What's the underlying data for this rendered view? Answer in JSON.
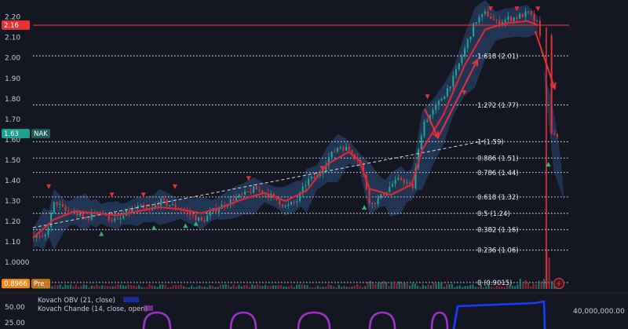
{
  "chart_data": {
    "type": "candlestick",
    "y_axis": {
      "ticks": [
        "2.20",
        "2.10",
        "2.00",
        "1.90",
        "1.80",
        "1.70",
        "1.60",
        "1.50",
        "1.40",
        "1.30",
        "1.20",
        "1.10",
        "1.0000"
      ],
      "range": [
        0.87,
        2.26
      ],
      "side": "left"
    },
    "grid": false,
    "price_tags": [
      {
        "label": "2.16",
        "value": 2.16,
        "color": "#e5323a",
        "line": true
      },
      {
        "label": "1.63",
        "value": 1.63,
        "color": "#1f9e92",
        "extra": "NAK"
      },
      {
        "label": "0.8966",
        "value": 0.8966,
        "color": "#ef8a1a",
        "extra": "Pre"
      }
    ],
    "fib_levels": [
      {
        "label": "1.618 (2.01)",
        "value": 2.01
      },
      {
        "label": "1.272 (1.77)",
        "value": 1.77
      },
      {
        "label": "1 (1.59)",
        "value": 1.59
      },
      {
        "label": "0.886 (1.51)",
        "value": 1.51
      },
      {
        "label": "0.786 (1.44)",
        "value": 1.44
      },
      {
        "label": "0.618 (1.32)",
        "value": 1.32
      },
      {
        "label": "0.5 (1.24)",
        "value": 1.24
      },
      {
        "label": "0.382 (1.16)",
        "value": 1.16
      },
      {
        "label": "0.236 (1.06)",
        "value": 1.06
      },
      {
        "label": "0 (0.9015)",
        "value": 0.9015
      }
    ],
    "price_path": [
      [
        0,
        1.13
      ],
      [
        2,
        1.11
      ],
      [
        4,
        1.3
      ],
      [
        6,
        1.25
      ],
      [
        8,
        1.24
      ],
      [
        10,
        1.21
      ],
      [
        12,
        1.26
      ],
      [
        14,
        1.22
      ],
      [
        16,
        1.2
      ],
      [
        18,
        1.25
      ],
      [
        20,
        1.27
      ],
      [
        22,
        1.25
      ],
      [
        24,
        1.3
      ],
      [
        26,
        1.28
      ],
      [
        28,
        1.26
      ],
      [
        30,
        1.23
      ],
      [
        32,
        1.2
      ],
      [
        34,
        1.25
      ],
      [
        36,
        1.28
      ],
      [
        38,
        1.31
      ],
      [
        40,
        1.33
      ],
      [
        42,
        1.36
      ],
      [
        44,
        1.34
      ],
      [
        46,
        1.31
      ],
      [
        48,
        1.27
      ],
      [
        50,
        1.3
      ],
      [
        52,
        1.4
      ],
      [
        54,
        1.42
      ],
      [
        56,
        1.51
      ],
      [
        58,
        1.57
      ],
      [
        60,
        1.55
      ],
      [
        62,
        1.5
      ],
      [
        64,
        1.28
      ],
      [
        66,
        1.32
      ],
      [
        68,
        1.38
      ],
      [
        70,
        1.41
      ],
      [
        72,
        1.36
      ],
      [
        74,
        1.68
      ],
      [
        76,
        1.74
      ],
      [
        78,
        1.82
      ],
      [
        80,
        1.91
      ],
      [
        82,
        2.05
      ],
      [
        84,
        2.18
      ],
      [
        86,
        2.22
      ],
      [
        88,
        2.17
      ],
      [
        90,
        2.19
      ],
      [
        92,
        2.2
      ],
      [
        94,
        2.22
      ],
      [
        96,
        2.16
      ],
      [
        98,
        1.66
      ],
      [
        99,
        1.62
      ],
      [
        100,
        1.63
      ]
    ],
    "moving_average": [
      [
        0,
        1.12
      ],
      [
        4,
        1.21
      ],
      [
        8,
        1.25
      ],
      [
        12,
        1.24
      ],
      [
        16,
        1.23
      ],
      [
        20,
        1.25
      ],
      [
        24,
        1.27
      ],
      [
        28,
        1.26
      ],
      [
        32,
        1.24
      ],
      [
        36,
        1.27
      ],
      [
        40,
        1.31
      ],
      [
        44,
        1.34
      ],
      [
        48,
        1.3
      ],
      [
        52,
        1.35
      ],
      [
        56,
        1.48
      ],
      [
        60,
        1.54
      ],
      [
        62,
        1.5
      ],
      [
        64,
        1.36
      ],
      [
        68,
        1.33
      ],
      [
        72,
        1.38
      ],
      [
        74,
        1.55
      ],
      [
        78,
        1.72
      ],
      [
        82,
        1.96
      ],
      [
        86,
        2.14
      ],
      [
        90,
        2.17
      ],
      [
        94,
        2.18
      ],
      [
        96,
        2.16
      ]
    ],
    "trendline": [
      [
        0,
        1.17
      ],
      [
        86,
        1.595
      ]
    ],
    "signal_arrows_down": [
      [
        3,
        1.37
      ],
      [
        15,
        1.33
      ],
      [
        21,
        1.33
      ],
      [
        27,
        1.37
      ],
      [
        41,
        1.41
      ],
      [
        55,
        1.46
      ],
      [
        75,
        1.81
      ],
      [
        82,
        1.83
      ],
      [
        87,
        2.24
      ],
      [
        92,
        2.24
      ],
      [
        96,
        2.24
      ]
    ],
    "signal_arrows_up": [
      [
        13,
        1.14
      ],
      [
        23,
        1.17
      ],
      [
        29,
        1.18
      ],
      [
        31,
        1.19
      ],
      [
        63,
        1.27
      ],
      [
        98,
        1.48
      ]
    ],
    "volume_label": "40,000,000.00",
    "indicators": [
      {
        "name": "Kovach OBV (21, close)",
        "color": "#1e3cff"
      },
      {
        "name": "Kovach Chande (14, close, open)",
        "color": "#b03fd0"
      }
    ],
    "indicator_ticks": [
      "50.00",
      "25.00"
    ]
  }
}
